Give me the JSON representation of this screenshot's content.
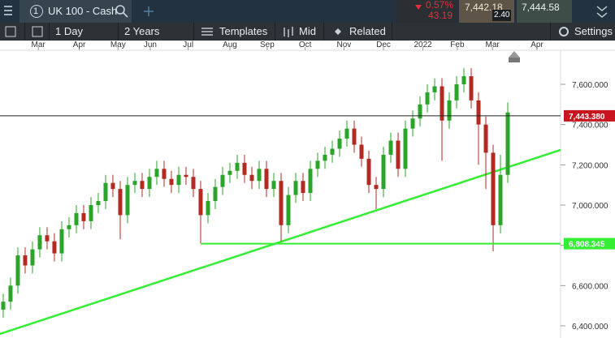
{
  "toolbar": {
    "instrument_number": "1",
    "instrument": "UK 100 - Cash",
    "change_pct": "0.57%",
    "change_pts": "43.19",
    "sell": "7,442.18",
    "spread": "2.40",
    "buy": "7,444.58",
    "interval": "1 Day",
    "range": "2 Years",
    "templates": "Templates",
    "price_type": "Mid",
    "related": "Related",
    "settings": "Settings"
  },
  "chart_data": {
    "type": "candlestick",
    "open": [
      6480,
      6520,
      6600,
      6750,
      6700,
      6780,
      6850,
      6820,
      6760,
      6880,
      6900,
      6960,
      6920,
      7000,
      7020,
      7110,
      7080,
      6950,
      7100,
      7120,
      7080,
      7140,
      7180,
      7130,
      7100,
      7150,
      7140,
      7080,
      6950,
      7020,
      7090,
      7150,
      7170,
      7210,
      7150,
      7120,
      7180,
      7080,
      7120,
      6900,
      7050,
      7120,
      7060,
      7180,
      7220,
      7250,
      7280,
      7330,
      7380,
      7300,
      7230,
      7100,
      7080,
      7250,
      7320,
      7180,
      7380,
      7430,
      7500,
      7560,
      7590,
      7420,
      7520,
      7600,
      7640,
      7520,
      7400,
      7260,
      6900,
      7150
    ],
    "high": [
      6560,
      6640,
      6790,
      6790,
      6820,
      6890,
      6890,
      6860,
      6920,
      6940,
      7000,
      7000,
      7040,
      7060,
      7150,
      7150,
      7120,
      7140,
      7160,
      7160,
      7180,
      7220,
      7220,
      7170,
      7190,
      7190,
      7180,
      7120,
      7060,
      7130,
      7190,
      7210,
      7250,
      7250,
      7190,
      7220,
      7220,
      7160,
      7160,
      7090,
      7160,
      7160,
      7220,
      7260,
      7290,
      7320,
      7370,
      7420,
      7420,
      7340,
      7270,
      7140,
      7290,
      7360,
      7360,
      7420,
      7470,
      7540,
      7600,
      7630,
      7630,
      7560,
      7640,
      7680,
      7680,
      7560,
      7440,
      7300,
      7250,
      7510
    ],
    "low": [
      6440,
      6480,
      6560,
      6660,
      6660,
      6740,
      6780,
      6720,
      6720,
      6840,
      6860,
      6880,
      6880,
      6960,
      6980,
      7040,
      6830,
      6910,
      7060,
      7040,
      7040,
      7100,
      7090,
      7060,
      7060,
      7100,
      7040,
      6810,
      6910,
      6980,
      7050,
      7110,
      7130,
      7110,
      7080,
      7080,
      7040,
      7040,
      6820,
      6860,
      7010,
      7020,
      7020,
      7140,
      7180,
      7210,
      7240,
      7290,
      7260,
      7190,
      7060,
      6980,
      7040,
      7210,
      7140,
      7140,
      7340,
      7390,
      7460,
      7520,
      7220,
      7380,
      7480,
      7560,
      7480,
      7200,
      7080,
      6770,
      6860,
      7110
    ],
    "close": [
      6520,
      6600,
      6750,
      6700,
      6780,
      6850,
      6820,
      6760,
      6880,
      6900,
      6960,
      6920,
      7000,
      7020,
      7110,
      7080,
      6950,
      7100,
      7120,
      7080,
      7140,
      7180,
      7130,
      7100,
      7150,
      7140,
      7080,
      6950,
      7020,
      7090,
      7150,
      7170,
      7210,
      7150,
      7120,
      7180,
      7080,
      7120,
      6900,
      7050,
      7120,
      7060,
      7180,
      7220,
      7250,
      7280,
      7330,
      7380,
      7300,
      7230,
      7100,
      7080,
      7250,
      7320,
      7180,
      7380,
      7430,
      7500,
      7560,
      7590,
      7420,
      7520,
      7600,
      7640,
      7520,
      7400,
      7260,
      6900,
      7150,
      7460
    ],
    "up_color": "#2aa52a",
    "down_color": "#b22a22",
    "xlim": [
      -0.44,
      76.22
    ],
    "xticks": [
      {
        "value": 4.8,
        "label": "Mar"
      },
      {
        "value": 10.4,
        "label": "Apr"
      },
      {
        "value": 15.7,
        "label": "May"
      },
      {
        "value": 20.1,
        "label": "Jun"
      },
      {
        "value": 25.3,
        "label": "Jul"
      },
      {
        "value": 31,
        "label": "Aug"
      },
      {
        "value": 36.1,
        "label": "Sep"
      },
      {
        "value": 41.3,
        "label": "Oct"
      },
      {
        "value": 46.6,
        "label": "Nov"
      },
      {
        "value": 52,
        "label": "Dec"
      },
      {
        "value": 57.4,
        "label": "2022"
      },
      {
        "value": 62.1,
        "label": "Feb"
      },
      {
        "value": 66.9,
        "label": "Mar"
      },
      {
        "value": 73,
        "label": "Apr"
      }
    ],
    "ylim": [
      6339.6,
      7769.1
    ],
    "yticks": [
      {
        "value": 6400,
        "label": "6,400.000"
      },
      {
        "value": 6600,
        "label": "6,600.000"
      },
      {
        "value": 6800,
        "label": "6,800.000"
      },
      {
        "value": 7000,
        "label": "7,000.000"
      },
      {
        "value": 7200,
        "label": "7,200.000"
      },
      {
        "value": 7400,
        "label": "7,400.000"
      },
      {
        "value": 7600,
        "label": "7,600.000"
      }
    ],
    "hlines": [
      {
        "value": 7443.38,
        "label": "7,443.380",
        "color": "#222222",
        "label_bg": "#c8141e",
        "label_color": "#ffffff"
      },
      {
        "value": 6808.345,
        "label": "6,808.345",
        "color": "#33ee33",
        "label_bg": "#33ee33",
        "label_color": "#ffffff",
        "start": 27
      }
    ],
    "trendline": {
      "x": [
        -0.44,
        76.22
      ],
      "y": [
        6360,
        7274
      ],
      "color": "#33ee33"
    }
  }
}
